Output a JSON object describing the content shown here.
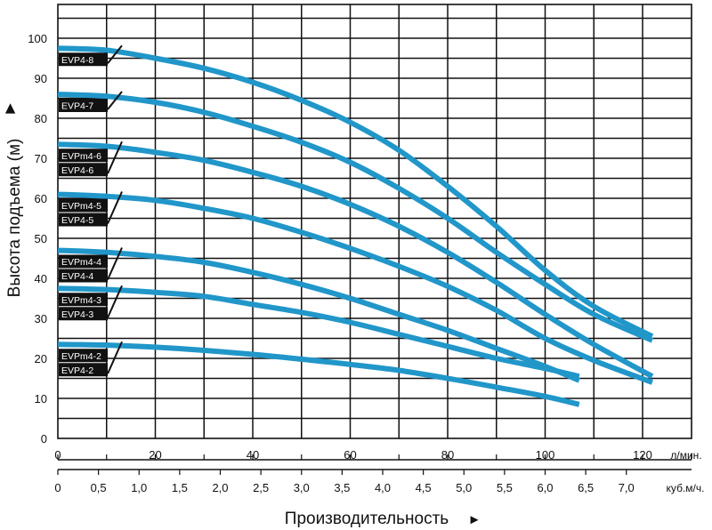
{
  "chart_data": {
    "type": "line",
    "ylabel": "Высота подъема (м)",
    "xlabel": "Производительность",
    "x_unit": "л/мин.",
    "x2_unit": "куб.м/ч.",
    "ylim": [
      0,
      100
    ],
    "yticks": [
      0,
      10,
      20,
      30,
      40,
      50,
      60,
      70,
      80,
      90,
      100
    ],
    "xlim": [
      0,
      120
    ],
    "xticks": [
      0,
      20,
      40,
      60,
      80,
      100,
      120
    ],
    "x2ticks": [
      "0",
      "0,5",
      "1,0",
      "1,5",
      "2,0",
      "2,5",
      "3,0",
      "3,5",
      "4,0",
      "4,5",
      "5,0",
      "5,5",
      "6,0",
      "6,5",
      "7,0"
    ],
    "x2tick_values": [
      0,
      0.5,
      1.0,
      1.5,
      2.0,
      2.5,
      3.0,
      3.5,
      4.0,
      4.5,
      5.0,
      5.5,
      6.0,
      6.5,
      7.0
    ],
    "grid": true,
    "line_color": "#2196c9",
    "series": [
      {
        "labels": [
          "EVP4-8"
        ],
        "points": [
          [
            0,
            97.5
          ],
          [
            10,
            97
          ],
          [
            20,
            95
          ],
          [
            30,
            92.5
          ],
          [
            40,
            89
          ],
          [
            50,
            84.5
          ],
          [
            60,
            79
          ],
          [
            70,
            72
          ],
          [
            80,
            63
          ],
          [
            90,
            53
          ],
          [
            100,
            42
          ],
          [
            110,
            33
          ],
          [
            122,
            25.5
          ]
        ]
      },
      {
        "labels": [
          "EVP4-7"
        ],
        "points": [
          [
            0,
            86
          ],
          [
            10,
            85.5
          ],
          [
            20,
            84
          ],
          [
            30,
            81.5
          ],
          [
            40,
            78
          ],
          [
            50,
            74
          ],
          [
            60,
            69
          ],
          [
            70,
            62.5
          ],
          [
            80,
            55
          ],
          [
            90,
            46.5
          ],
          [
            100,
            38.5
          ],
          [
            110,
            31
          ],
          [
            122,
            24.5
          ]
        ]
      },
      {
        "labels": [
          "EVPm4-6",
          "EVP4-6"
        ],
        "points": [
          [
            0,
            73.5
          ],
          [
            10,
            73
          ],
          [
            20,
            71.5
          ],
          [
            30,
            69.5
          ],
          [
            40,
            66.5
          ],
          [
            50,
            63
          ],
          [
            60,
            58.5
          ],
          [
            70,
            53
          ],
          [
            80,
            46.5
          ],
          [
            90,
            39
          ],
          [
            100,
            31
          ],
          [
            110,
            23.5
          ],
          [
            122,
            15.5
          ]
        ]
      },
      {
        "labels": [
          "EVPm4-5",
          "EVP4-5"
        ],
        "points": [
          [
            0,
            61
          ],
          [
            10,
            60.5
          ],
          [
            20,
            59.5
          ],
          [
            30,
            57.5
          ],
          [
            40,
            55
          ],
          [
            50,
            51.5
          ],
          [
            60,
            47.5
          ],
          [
            70,
            43
          ],
          [
            80,
            38
          ],
          [
            90,
            32
          ],
          [
            100,
            25
          ],
          [
            110,
            19.5
          ],
          [
            122,
            14
          ]
        ]
      },
      {
        "labels": [
          "EVPm4-4",
          "EVP4-4"
        ],
        "points": [
          [
            0,
            47
          ],
          [
            10,
            46.5
          ],
          [
            20,
            45.5
          ],
          [
            30,
            44
          ],
          [
            40,
            41.5
          ],
          [
            50,
            38.5
          ],
          [
            60,
            35
          ],
          [
            70,
            31
          ],
          [
            80,
            27
          ],
          [
            90,
            22.5
          ],
          [
            100,
            18
          ],
          [
            107,
            14.5
          ]
        ]
      },
      {
        "labels": [
          "EVPm4-3",
          "EVP4-3"
        ],
        "points": [
          [
            0,
            37.5
          ],
          [
            10,
            37.2
          ],
          [
            20,
            36.5
          ],
          [
            30,
            35.5
          ],
          [
            40,
            33.5
          ],
          [
            50,
            31.5
          ],
          [
            60,
            29
          ],
          [
            70,
            26
          ],
          [
            80,
            23
          ],
          [
            90,
            20
          ],
          [
            100,
            17.5
          ],
          [
            107,
            15.5
          ]
        ]
      },
      {
        "labels": [
          "EVPm4-2",
          "EVP4-2"
        ],
        "points": [
          [
            0,
            23.5
          ],
          [
            10,
            23.3
          ],
          [
            20,
            22.8
          ],
          [
            30,
            22
          ],
          [
            40,
            21
          ],
          [
            50,
            19.8
          ],
          [
            60,
            18.5
          ],
          [
            70,
            17
          ],
          [
            80,
            15
          ],
          [
            90,
            12.8
          ],
          [
            100,
            10.5
          ],
          [
            107,
            8.5
          ]
        ]
      }
    ]
  }
}
